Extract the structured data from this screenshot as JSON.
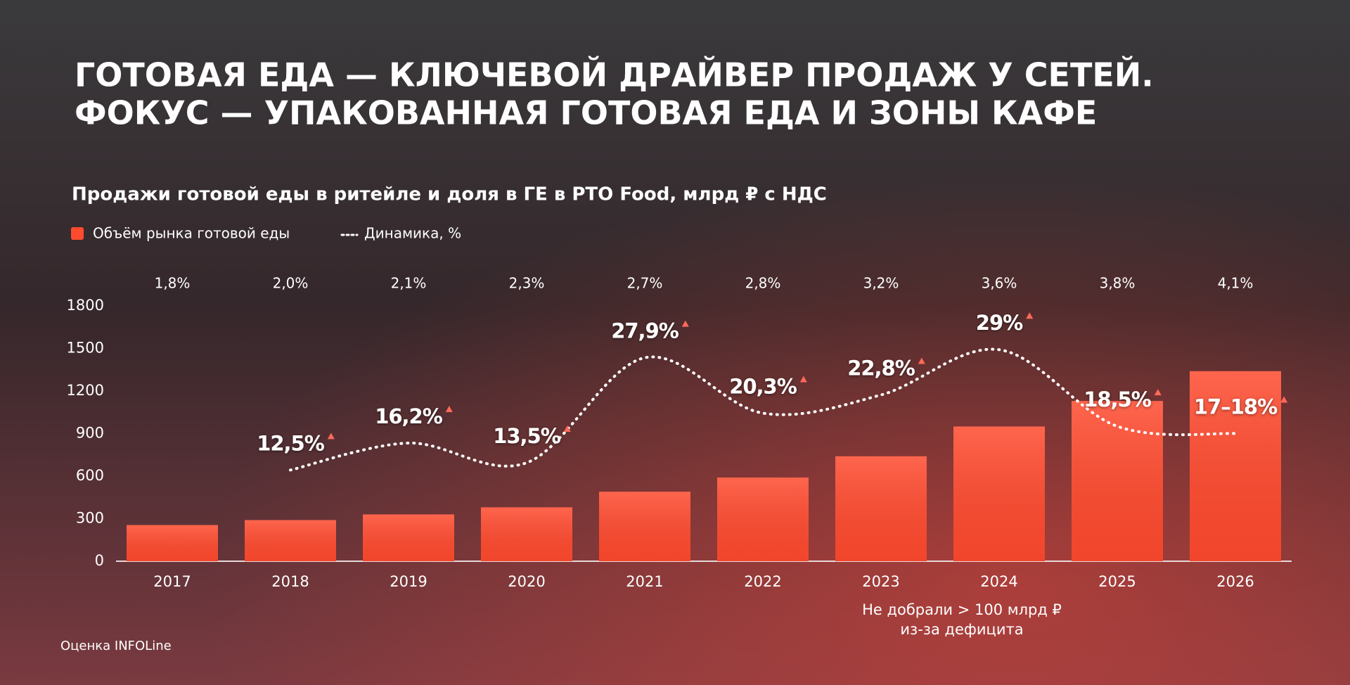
{
  "header": {
    "title_lines": [
      "ГОТОВАЯ ЕДА — КЛЮЧЕВОЙ ДРАЙВЕР ПРОДАЖ У СЕТЕЙ.",
      "ФОКУС — УПАКОВАННАЯ ГОТОВАЯ ЕДА И ЗОНЫ КАФЕ"
    ]
  },
  "chart_data": {
    "type": "bar",
    "title": "Продажи готовой еды в ритейле и доля в ГЕ в РТО Food, млрд ₽ с НДС",
    "categories": [
      "2017",
      "2018",
      "2019",
      "2020",
      "2021",
      "2022",
      "2023",
      "2024",
      "2025",
      "2026"
    ],
    "series": [
      {
        "name": "Объём рынка готовой еды",
        "color": "#ff4a2e",
        "values": [
          255,
          290,
          330,
          380,
          490,
          590,
          740,
          950,
          1130,
          1340
        ]
      },
      {
        "name": "Динамика, %",
        "color": "#ffffff",
        "axis": "y2",
        "type": "line",
        "values": [
          null,
          12.5,
          16.2,
          13.5,
          27.9,
          20.3,
          22.8,
          29,
          18.5,
          17.5
        ],
        "value_labels": [
          null,
          "12,5%",
          "16,2%",
          "13,5%",
          "27,9%",
          "20,3%",
          "22,8%",
          "29%",
          "18,5%",
          "17–18%"
        ]
      }
    ],
    "share": {
      "values": [
        1.8,
        2.0,
        2.1,
        2.3,
        2.7,
        2.8,
        3.2,
        3.6,
        3.8,
        4.1
      ],
      "value_labels": [
        "1,8%",
        "2,0%",
        "2,1%",
        "2,3%",
        "2,7%",
        "2,8%",
        "3,2%",
        "3,6%",
        "3,8%",
        "4,1%"
      ]
    },
    "ylim": [
      0,
      1800
    ],
    "yticks": [
      0,
      300,
      600,
      900,
      1200,
      1500,
      1800
    ],
    "y2lim": [
      0,
      35
    ],
    "annotation_lines": [
      "Не добрали > 100 млрд ₽",
      "из-за дефицита"
    ],
    "source": "Оценка INFOLine"
  }
}
